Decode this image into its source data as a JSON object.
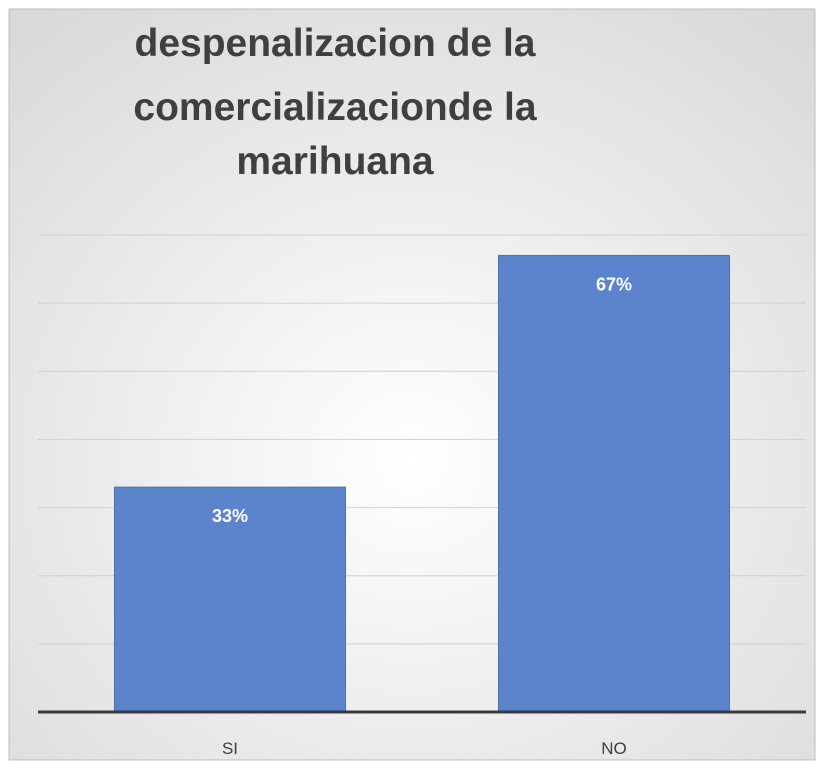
{
  "chart_data": {
    "type": "bar",
    "title_lines": [
      "despenalizacion de la",
      "comercializacionde la",
      "marihuana"
    ],
    "categories": [
      "SI",
      "NO"
    ],
    "values": [
      33,
      67
    ],
    "data_labels": [
      "33%",
      "67%"
    ],
    "xlabel": "",
    "ylabel": "",
    "ylim": [
      0,
      70
    ],
    "grid": true,
    "legend": "none",
    "colors": {
      "bar": "#5b84cc",
      "bar_edge": "#4a72bb",
      "grid": "#d0d0d0",
      "axis": "#3a3a3a",
      "background_center": "#ffffff",
      "background_edge": "#d9d9d9",
      "frame": "#bdbdbd"
    }
  }
}
